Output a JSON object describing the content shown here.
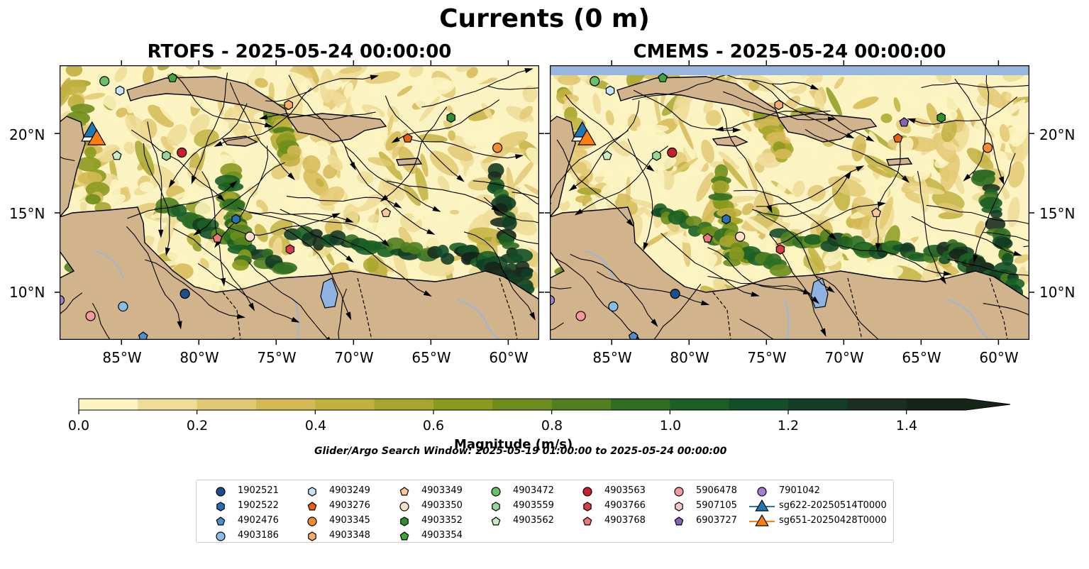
{
  "figure": {
    "suptitle": "Currents (0 m)",
    "search_window": "Glider/Argo Search Window: 2025-05-19 01:00:00 to 2025-05-24 00:00:00"
  },
  "chart_data": [
    {
      "type": "heatmap",
      "title": "RTOFS - 2025-05-24 00:00:00",
      "variable": "Current magnitude (streamlines overlaid)",
      "xlim": [
        -89,
        -58
      ],
      "ylim": [
        7,
        24.3
      ],
      "x_ticks": [
        -85,
        -80,
        -75,
        -70,
        -65,
        -60
      ],
      "x_tick_labels": [
        "85°W",
        "80°W",
        "75°W",
        "70°W",
        "65°W",
        "60°W"
      ],
      "y_ticks": [
        10,
        15,
        20
      ],
      "y_tick_labels": [
        "10°N",
        "15°N",
        "20°N"
      ],
      "y_label_side": "left",
      "masked_band_top": false
    },
    {
      "type": "heatmap",
      "title": "CMEMS - 2025-05-24 00:00:00",
      "variable": "Current magnitude (streamlines overlaid)",
      "xlim": [
        -89,
        -58
      ],
      "ylim": [
        7,
        24.3
      ],
      "x_ticks": [
        -85,
        -80,
        -75,
        -70,
        -65,
        -60
      ],
      "x_tick_labels": [
        "85°W",
        "80°W",
        "75°W",
        "70°W",
        "65°W",
        "60°W"
      ],
      "y_ticks": [
        10,
        15,
        20
      ],
      "y_tick_labels": [
        "10°N",
        "15°N",
        "20°N"
      ],
      "y_label_side": "right",
      "masked_band_top": true
    }
  ],
  "colorbar": {
    "label": "Magnitude (m/s)",
    "min": 0.0,
    "max": 1.5,
    "step": 0.1,
    "extend": "max",
    "ticks": [
      0.0,
      0.2,
      0.4,
      0.6,
      0.8,
      1.0,
      1.2,
      1.4
    ],
    "tick_labels": [
      "0.0",
      "0.2",
      "0.4",
      "0.6",
      "0.8",
      "1.0",
      "1.2",
      "1.4"
    ],
    "colors": [
      "#fbf4c2",
      "#eedc97",
      "#e2c872",
      "#d4b955",
      "#c2b040",
      "#a8a52c",
      "#8b9a1e",
      "#6e8e1c",
      "#4f7f1f",
      "#2f6e22",
      "#1b5f25",
      "#124e27",
      "#133d24",
      "#1a2f1f",
      "#172518"
    ]
  },
  "legend": {
    "items": [
      {
        "label": "1902521",
        "marker": "circle",
        "color": "#1f4e8c"
      },
      {
        "label": "1902522",
        "marker": "hexagon",
        "color": "#2a6fb5"
      },
      {
        "label": "4902476",
        "marker": "pentagon",
        "color": "#4f8fce"
      },
      {
        "label": "4903186",
        "marker": "circle",
        "color": "#89bde8"
      },
      {
        "label": "4903249",
        "marker": "hexagon",
        "color": "#c8e3f8"
      },
      {
        "label": "4903276",
        "marker": "pentagon",
        "color": "#e8600f"
      },
      {
        "label": "4903345",
        "marker": "circle",
        "color": "#f28c2e"
      },
      {
        "label": "4903348",
        "marker": "hexagon",
        "color": "#f6ac6a"
      },
      {
        "label": "4903349",
        "marker": "pentagon",
        "color": "#f9c99b"
      },
      {
        "label": "4903350",
        "marker": "circle",
        "color": "#fde0c5"
      },
      {
        "label": "4903352",
        "marker": "hexagon",
        "color": "#2f8f2f"
      },
      {
        "label": "4903354",
        "marker": "pentagon",
        "color": "#3fa63f"
      },
      {
        "label": "4903472",
        "marker": "circle",
        "color": "#67c167"
      },
      {
        "label": "4903559",
        "marker": "hexagon",
        "color": "#97d897"
      },
      {
        "label": "4903562",
        "marker": "pentagon",
        "color": "#c6edc2"
      },
      {
        "label": "4903563",
        "marker": "circle",
        "color": "#c8202a"
      },
      {
        "label": "4903766",
        "marker": "hexagon",
        "color": "#d63e43"
      },
      {
        "label": "4903768",
        "marker": "pentagon",
        "color": "#ee7878"
      },
      {
        "label": "5906478",
        "marker": "circle",
        "color": "#f59a9a"
      },
      {
        "label": "5907105",
        "marker": "hexagon",
        "color": "#f9c6c6"
      },
      {
        "label": "6903727",
        "marker": "pentagon",
        "color": "#8763b8"
      },
      {
        "label": "7901042",
        "marker": "circle",
        "color": "#a67fd0"
      },
      {
        "label": "sg622-20250514T0000",
        "marker": "triangle-line",
        "color": "#1f77b4"
      },
      {
        "label": "sg651-20250428T0000",
        "marker": "triangle-line",
        "color": "#ff7f0e"
      }
    ]
  }
}
